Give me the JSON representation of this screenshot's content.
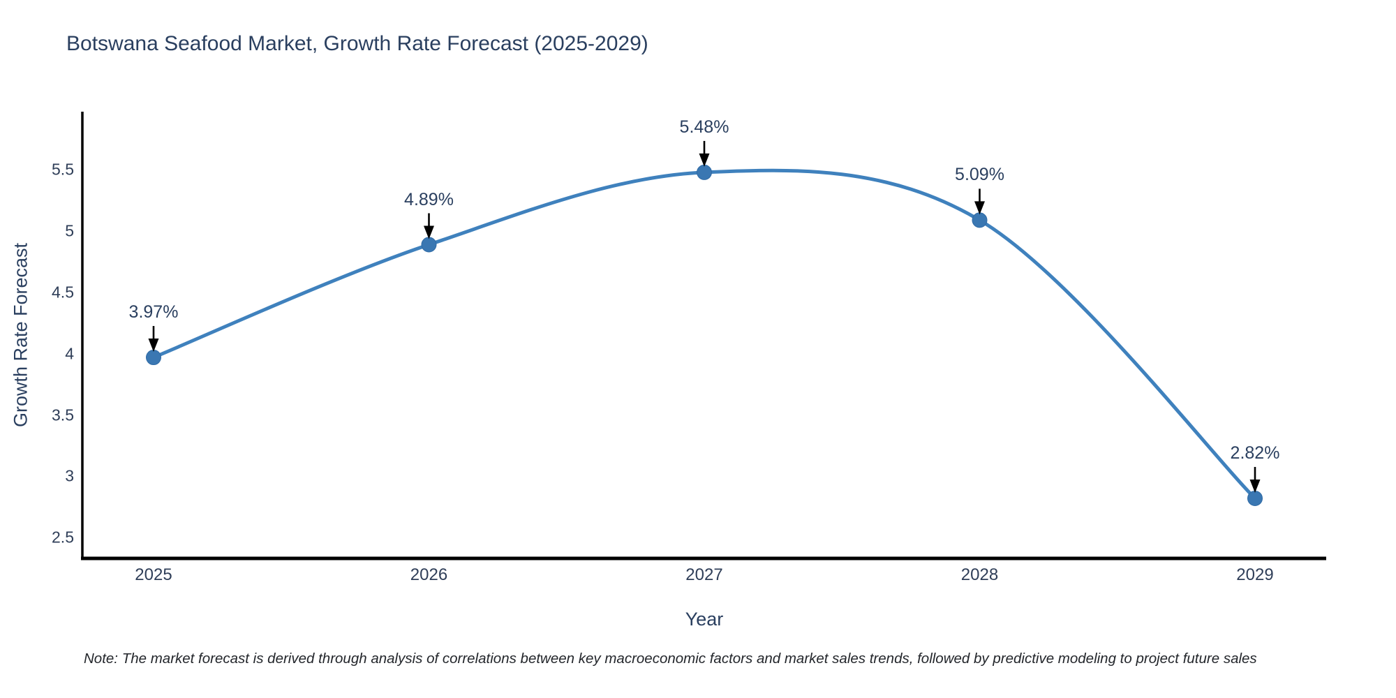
{
  "title": "Botswana Seafood Market, Growth Rate Forecast (2025-2029)",
  "note": "Note: The market forecast is derived through analysis of correlations between key macroeconomic factors and market sales trends, followed by predictive modeling to project future sales",
  "chart_data": {
    "type": "line",
    "title": "Botswana Seafood Market, Growth Rate Forecast (2025-2029)",
    "xlabel": "Year",
    "ylabel": "Growth Rate Forecast",
    "x": [
      2025,
      2026,
      2027,
      2028,
      2029
    ],
    "series": [
      {
        "name": "Growth Rate Forecast",
        "values": [
          3.97,
          4.89,
          5.48,
          5.09,
          2.82
        ]
      }
    ],
    "point_labels": [
      "3.97%",
      "4.89%",
      "5.48%",
      "5.09%",
      "2.82%"
    ],
    "yticks": [
      2.5,
      3,
      3.5,
      4,
      4.5,
      5,
      5.5
    ],
    "ylim": [
      2.33,
      5.975
    ],
    "grid": false,
    "legend_position": "none",
    "colors": {
      "line": "#3f81bd",
      "marker": "#3a77b2",
      "marker_edge": "#2f6aa5",
      "axis": "#000000",
      "arrow": "#000000",
      "text": "#2a3f5f"
    }
  }
}
